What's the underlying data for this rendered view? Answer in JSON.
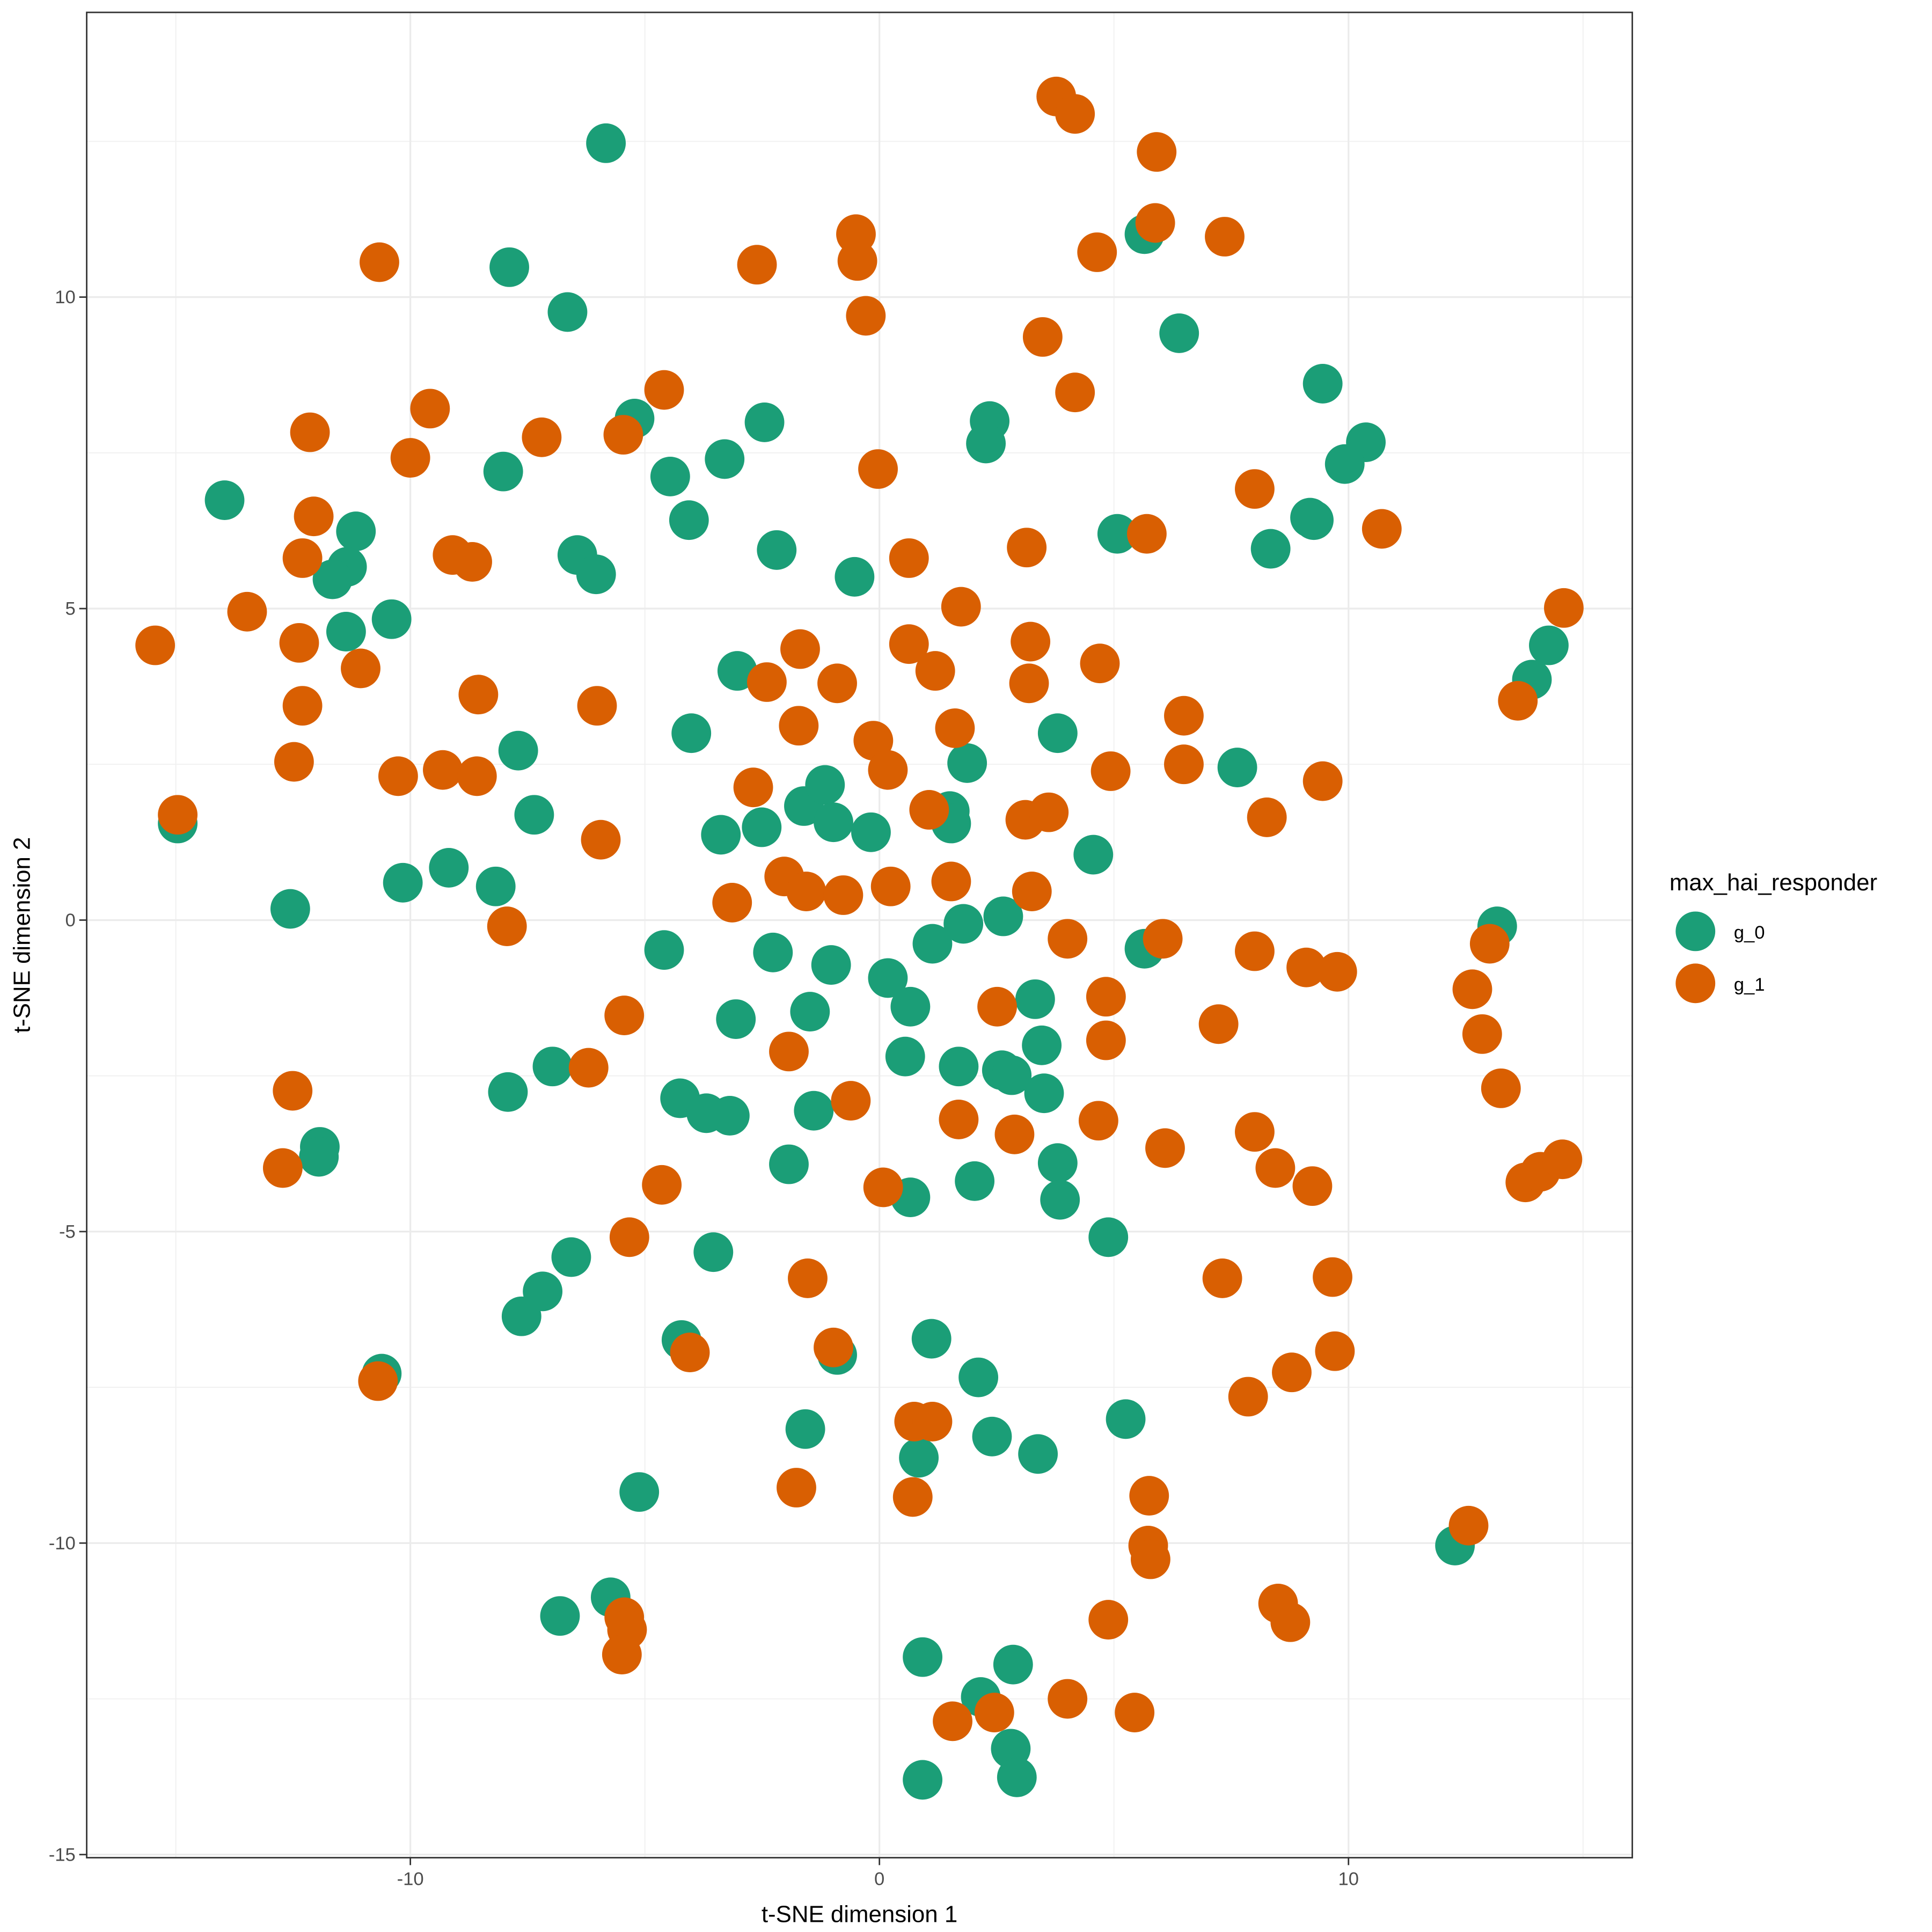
{
  "chart_data": {
    "type": "scatter",
    "xlabel": "t-SNE dimension 1",
    "ylabel": "t-SNE dimension 2",
    "xlim": [
      -16.9,
      16.05
    ],
    "ylim": [
      -15.05,
      14.57
    ],
    "xticks": [
      -10,
      0,
      10
    ],
    "yticks": [
      -15,
      -10,
      -5,
      0,
      5,
      10
    ],
    "xtick_labels": [
      "-10",
      "0",
      "10"
    ],
    "ytick_labels": [
      "-15",
      "-10",
      "-5",
      "0",
      "5",
      "10"
    ],
    "grid": true,
    "legend": {
      "title": "max_hai_responder",
      "placement": "right"
    },
    "series": [
      {
        "name": "g_0",
        "color": "#1B9E77",
        "points": [
          [
            -5.83,
            12.47
          ],
          [
            -7.89,
            10.48
          ],
          [
            -6.65,
            9.76
          ],
          [
            -13.96,
            6.74
          ],
          [
            -11.16,
            6.24
          ],
          [
            -11.35,
            5.67
          ],
          [
            -11.66,
            5.47
          ],
          [
            -11.37,
            4.63
          ],
          [
            -10.4,
            4.83
          ],
          [
            -5.22,
            8.05
          ],
          [
            -4.46,
            7.12
          ],
          [
            -8.02,
            7.2
          ],
          [
            -3.3,
            7.4
          ],
          [
            -2.45,
            7.99
          ],
          [
            -4.06,
            6.42
          ],
          [
            -6.44,
            5.86
          ],
          [
            -6.04,
            5.55
          ],
          [
            -2.19,
            5.94
          ],
          [
            -0.53,
            5.51
          ],
          [
            2.35,
            8.01
          ],
          [
            2.27,
            7.65
          ],
          [
            5.65,
            11.01
          ],
          [
            6.39,
            9.42
          ],
          [
            5.07,
            6.2
          ],
          [
            9.45,
            8.61
          ],
          [
            10.37,
            7.67
          ],
          [
            9.92,
            7.32
          ],
          [
            9.18,
            6.46
          ],
          [
            9.26,
            6.42
          ],
          [
            8.34,
            5.96
          ],
          [
            14.27,
            4.41
          ],
          [
            13.91,
            3.86
          ],
          [
            -3.03,
            4.0
          ],
          [
            -4.01,
            3.0
          ],
          [
            -7.7,
            2.72
          ],
          [
            -7.36,
            1.69
          ],
          [
            -14.96,
            1.55
          ],
          [
            -12.56,
            0.18
          ],
          [
            -10.16,
            0.6
          ],
          [
            -9.18,
            0.84
          ],
          [
            -8.18,
            0.54
          ],
          [
            -3.38,
            1.37
          ],
          [
            -2.51,
            1.49
          ],
          [
            -1.61,
            1.83
          ],
          [
            -1.16,
            2.17
          ],
          [
            -0.98,
            1.57
          ],
          [
            -0.18,
            1.41
          ],
          [
            1.87,
            2.52
          ],
          [
            1.5,
            1.75
          ],
          [
            1.53,
            1.55
          ],
          [
            3.8,
            3.0
          ],
          [
            4.56,
            1.05
          ],
          [
            7.63,
            2.45
          ],
          [
            2.64,
            0.06
          ],
          [
            1.79,
            -0.06
          ],
          [
            1.13,
            -0.38
          ],
          [
            5.65,
            -0.46
          ],
          [
            13.17,
            -0.1
          ],
          [
            -4.59,
            -0.48
          ],
          [
            -2.27,
            -0.52
          ],
          [
            -1.03,
            -0.72
          ],
          [
            0.18,
            -0.93
          ],
          [
            0.66,
            -1.39
          ],
          [
            -1.48,
            -1.47
          ],
          [
            -3.06,
            -1.59
          ],
          [
            3.32,
            -1.27
          ],
          [
            3.46,
            -2.01
          ],
          [
            0.55,
            -2.19
          ],
          [
            1.69,
            -2.35
          ],
          [
            2.61,
            -2.41
          ],
          [
            2.82,
            -2.49
          ],
          [
            3.51,
            -2.78
          ],
          [
            -6.97,
            -2.35
          ],
          [
            -7.92,
            -2.76
          ],
          [
            -4.25,
            -2.86
          ],
          [
            -3.69,
            -3.1
          ],
          [
            -3.19,
            -3.14
          ],
          [
            -1.4,
            -3.06
          ],
          [
            -1.93,
            -3.92
          ],
          [
            3.8,
            -3.9
          ],
          [
            3.85,
            -4.49
          ],
          [
            2.03,
            -4.19
          ],
          [
            0.66,
            -4.45
          ],
          [
            4.88,
            -5.09
          ],
          [
            -11.93,
            -3.64
          ],
          [
            -11.95,
            -3.8
          ],
          [
            -6.57,
            -5.41
          ],
          [
            -7.18,
            -5.96
          ],
          [
            -7.63,
            -6.36
          ],
          [
            -3.54,
            -5.33
          ],
          [
            -4.22,
            -6.74
          ],
          [
            -0.9,
            -6.98
          ],
          [
            1.11,
            -6.72
          ],
          [
            2.11,
            -7.34
          ],
          [
            -10.61,
            -7.28
          ],
          [
            -1.58,
            -8.17
          ],
          [
            0.84,
            -8.63
          ],
          [
            2.4,
            -8.29
          ],
          [
            3.38,
            -8.57
          ],
          [
            5.25,
            -8.01
          ],
          [
            -5.12,
            -9.18
          ],
          [
            12.27,
            -10.04
          ],
          [
            -6.81,
            -11.17
          ],
          [
            -5.73,
            -10.87
          ],
          [
            0.92,
            -11.83
          ],
          [
            2.85,
            -11.95
          ],
          [
            2.16,
            -12.47
          ],
          [
            2.8,
            -13.3
          ],
          [
            0.92,
            -13.8
          ],
          [
            2.93,
            -13.76
          ]
        ]
      },
      {
        "name": "g_1",
        "color": "#D95F02",
        "points": [
          [
            3.77,
            13.22
          ],
          [
            4.17,
            12.94
          ],
          [
            5.91,
            12.33
          ],
          [
            5.88,
            11.19
          ],
          [
            7.36,
            10.97
          ],
          [
            4.64,
            10.72
          ],
          [
            -0.5,
            11.01
          ],
          [
            -0.47,
            10.58
          ],
          [
            -0.29,
            9.7
          ],
          [
            -2.61,
            10.52
          ],
          [
            -10.66,
            10.56
          ],
          [
            3.48,
            9.36
          ],
          [
            4.17,
            8.47
          ],
          [
            -4.59,
            8.51
          ],
          [
            -5.46,
            7.79
          ],
          [
            -9.58,
            8.21
          ],
          [
            -10.0,
            7.42
          ],
          [
            -7.2,
            7.75
          ],
          [
            -12.14,
            7.83
          ],
          [
            -12.06,
            6.48
          ],
          [
            -12.3,
            5.81
          ],
          [
            -9.1,
            5.86
          ],
          [
            -8.68,
            5.75
          ],
          [
            -0.03,
            7.24
          ],
          [
            0.63,
            5.81
          ],
          [
            3.14,
            5.98
          ],
          [
            5.7,
            6.2
          ],
          [
            8.0,
            6.92
          ],
          [
            10.71,
            6.28
          ],
          [
            14.59,
            5.01
          ],
          [
            13.61,
            3.52
          ],
          [
            -15.44,
            4.41
          ],
          [
            -13.48,
            4.95
          ],
          [
            -12.37,
            4.45
          ],
          [
            -12.3,
            3.44
          ],
          [
            -11.06,
            4.04
          ],
          [
            -12.48,
            2.54
          ],
          [
            -8.55,
            3.62
          ],
          [
            -6.02,
            3.44
          ],
          [
            -9.31,
            2.41
          ],
          [
            -8.58,
            2.31
          ],
          [
            -10.26,
            2.31
          ],
          [
            -14.96,
            1.69
          ],
          [
            -5.94,
            1.29
          ],
          [
            -7.94,
            -0.1
          ],
          [
            1.74,
            5.03
          ],
          [
            0.63,
            4.43
          ],
          [
            1.19,
            4.0
          ],
          [
            -1.69,
            4.35
          ],
          [
            -2.4,
            3.82
          ],
          [
            -0.9,
            3.8
          ],
          [
            -1.72,
            3.12
          ],
          [
            -0.13,
            2.88
          ],
          [
            0.18,
            2.41
          ],
          [
            -2.69,
            2.13
          ],
          [
            1.61,
            3.08
          ],
          [
            1.06,
            1.77
          ],
          [
            3.22,
            4.47
          ],
          [
            3.19,
            3.8
          ],
          [
            4.7,
            4.12
          ],
          [
            6.49,
            3.28
          ],
          [
            6.49,
            2.5
          ],
          [
            4.93,
            2.39
          ],
          [
            9.45,
            2.23
          ],
          [
            8.26,
            1.65
          ],
          [
            3.11,
            1.61
          ],
          [
            3.61,
            1.73
          ],
          [
            -2.03,
            0.7
          ],
          [
            -1.56,
            0.46
          ],
          [
            -0.77,
            0.4
          ],
          [
            -3.14,
            0.28
          ],
          [
            0.24,
            0.54
          ],
          [
            1.53,
            0.62
          ],
          [
            3.25,
            0.46
          ],
          [
            4.01,
            -0.3
          ],
          [
            6.04,
            -0.3
          ],
          [
            8.0,
            -0.5
          ],
          [
            9.1,
            -0.76
          ],
          [
            9.76,
            -0.83
          ],
          [
            13.01,
            -0.38
          ],
          [
            12.64,
            -1.11
          ],
          [
            12.85,
            -1.83
          ],
          [
            13.25,
            -2.7
          ],
          [
            13.77,
            -4.21
          ],
          [
            14.09,
            -4.04
          ],
          [
            14.56,
            -3.84
          ],
          [
            4.83,
            -1.23
          ],
          [
            4.83,
            -1.93
          ],
          [
            7.23,
            -1.67
          ],
          [
            2.51,
            -1.39
          ],
          [
            -5.44,
            -1.53
          ],
          [
            -1.93,
            -2.11
          ],
          [
            -6.2,
            -2.37
          ],
          [
            -12.51,
            -2.74
          ],
          [
            -12.72,
            -3.98
          ],
          [
            -0.61,
            -2.9
          ],
          [
            1.69,
            -3.2
          ],
          [
            2.88,
            -3.44
          ],
          [
            4.67,
            -3.22
          ],
          [
            6.09,
            -3.66
          ],
          [
            8.0,
            -3.4
          ],
          [
            8.44,
            -3.98
          ],
          [
            9.23,
            -4.27
          ],
          [
            0.08,
            -4.29
          ],
          [
            -4.64,
            -4.25
          ],
          [
            -5.33,
            -5.09
          ],
          [
            -1.53,
            -5.75
          ],
          [
            7.31,
            -5.75
          ],
          [
            9.66,
            -5.73
          ],
          [
            9.71,
            -6.92
          ],
          [
            -4.04,
            -6.94
          ],
          [
            -0.98,
            -6.86
          ],
          [
            -10.69,
            -7.4
          ],
          [
            0.74,
            -8.05
          ],
          [
            1.13,
            -8.05
          ],
          [
            7.86,
            -7.65
          ],
          [
            8.79,
            -7.26
          ],
          [
            -1.77,
            -9.11
          ],
          [
            0.71,
            -9.26
          ],
          [
            5.75,
            -9.24
          ],
          [
            5.73,
            -10.04
          ],
          [
            5.78,
            -10.26
          ],
          [
            12.56,
            -9.72
          ],
          [
            8.5,
            -10.97
          ],
          [
            8.76,
            -11.27
          ],
          [
            4.88,
            -11.23
          ],
          [
            -5.44,
            -11.19
          ],
          [
            -5.38,
            -11.39
          ],
          [
            -5.49,
            -11.79
          ],
          [
            4.01,
            -12.5
          ],
          [
            5.44,
            -12.72
          ],
          [
            1.56,
            -12.86
          ],
          [
            2.45,
            -12.72
          ]
        ]
      }
    ]
  }
}
